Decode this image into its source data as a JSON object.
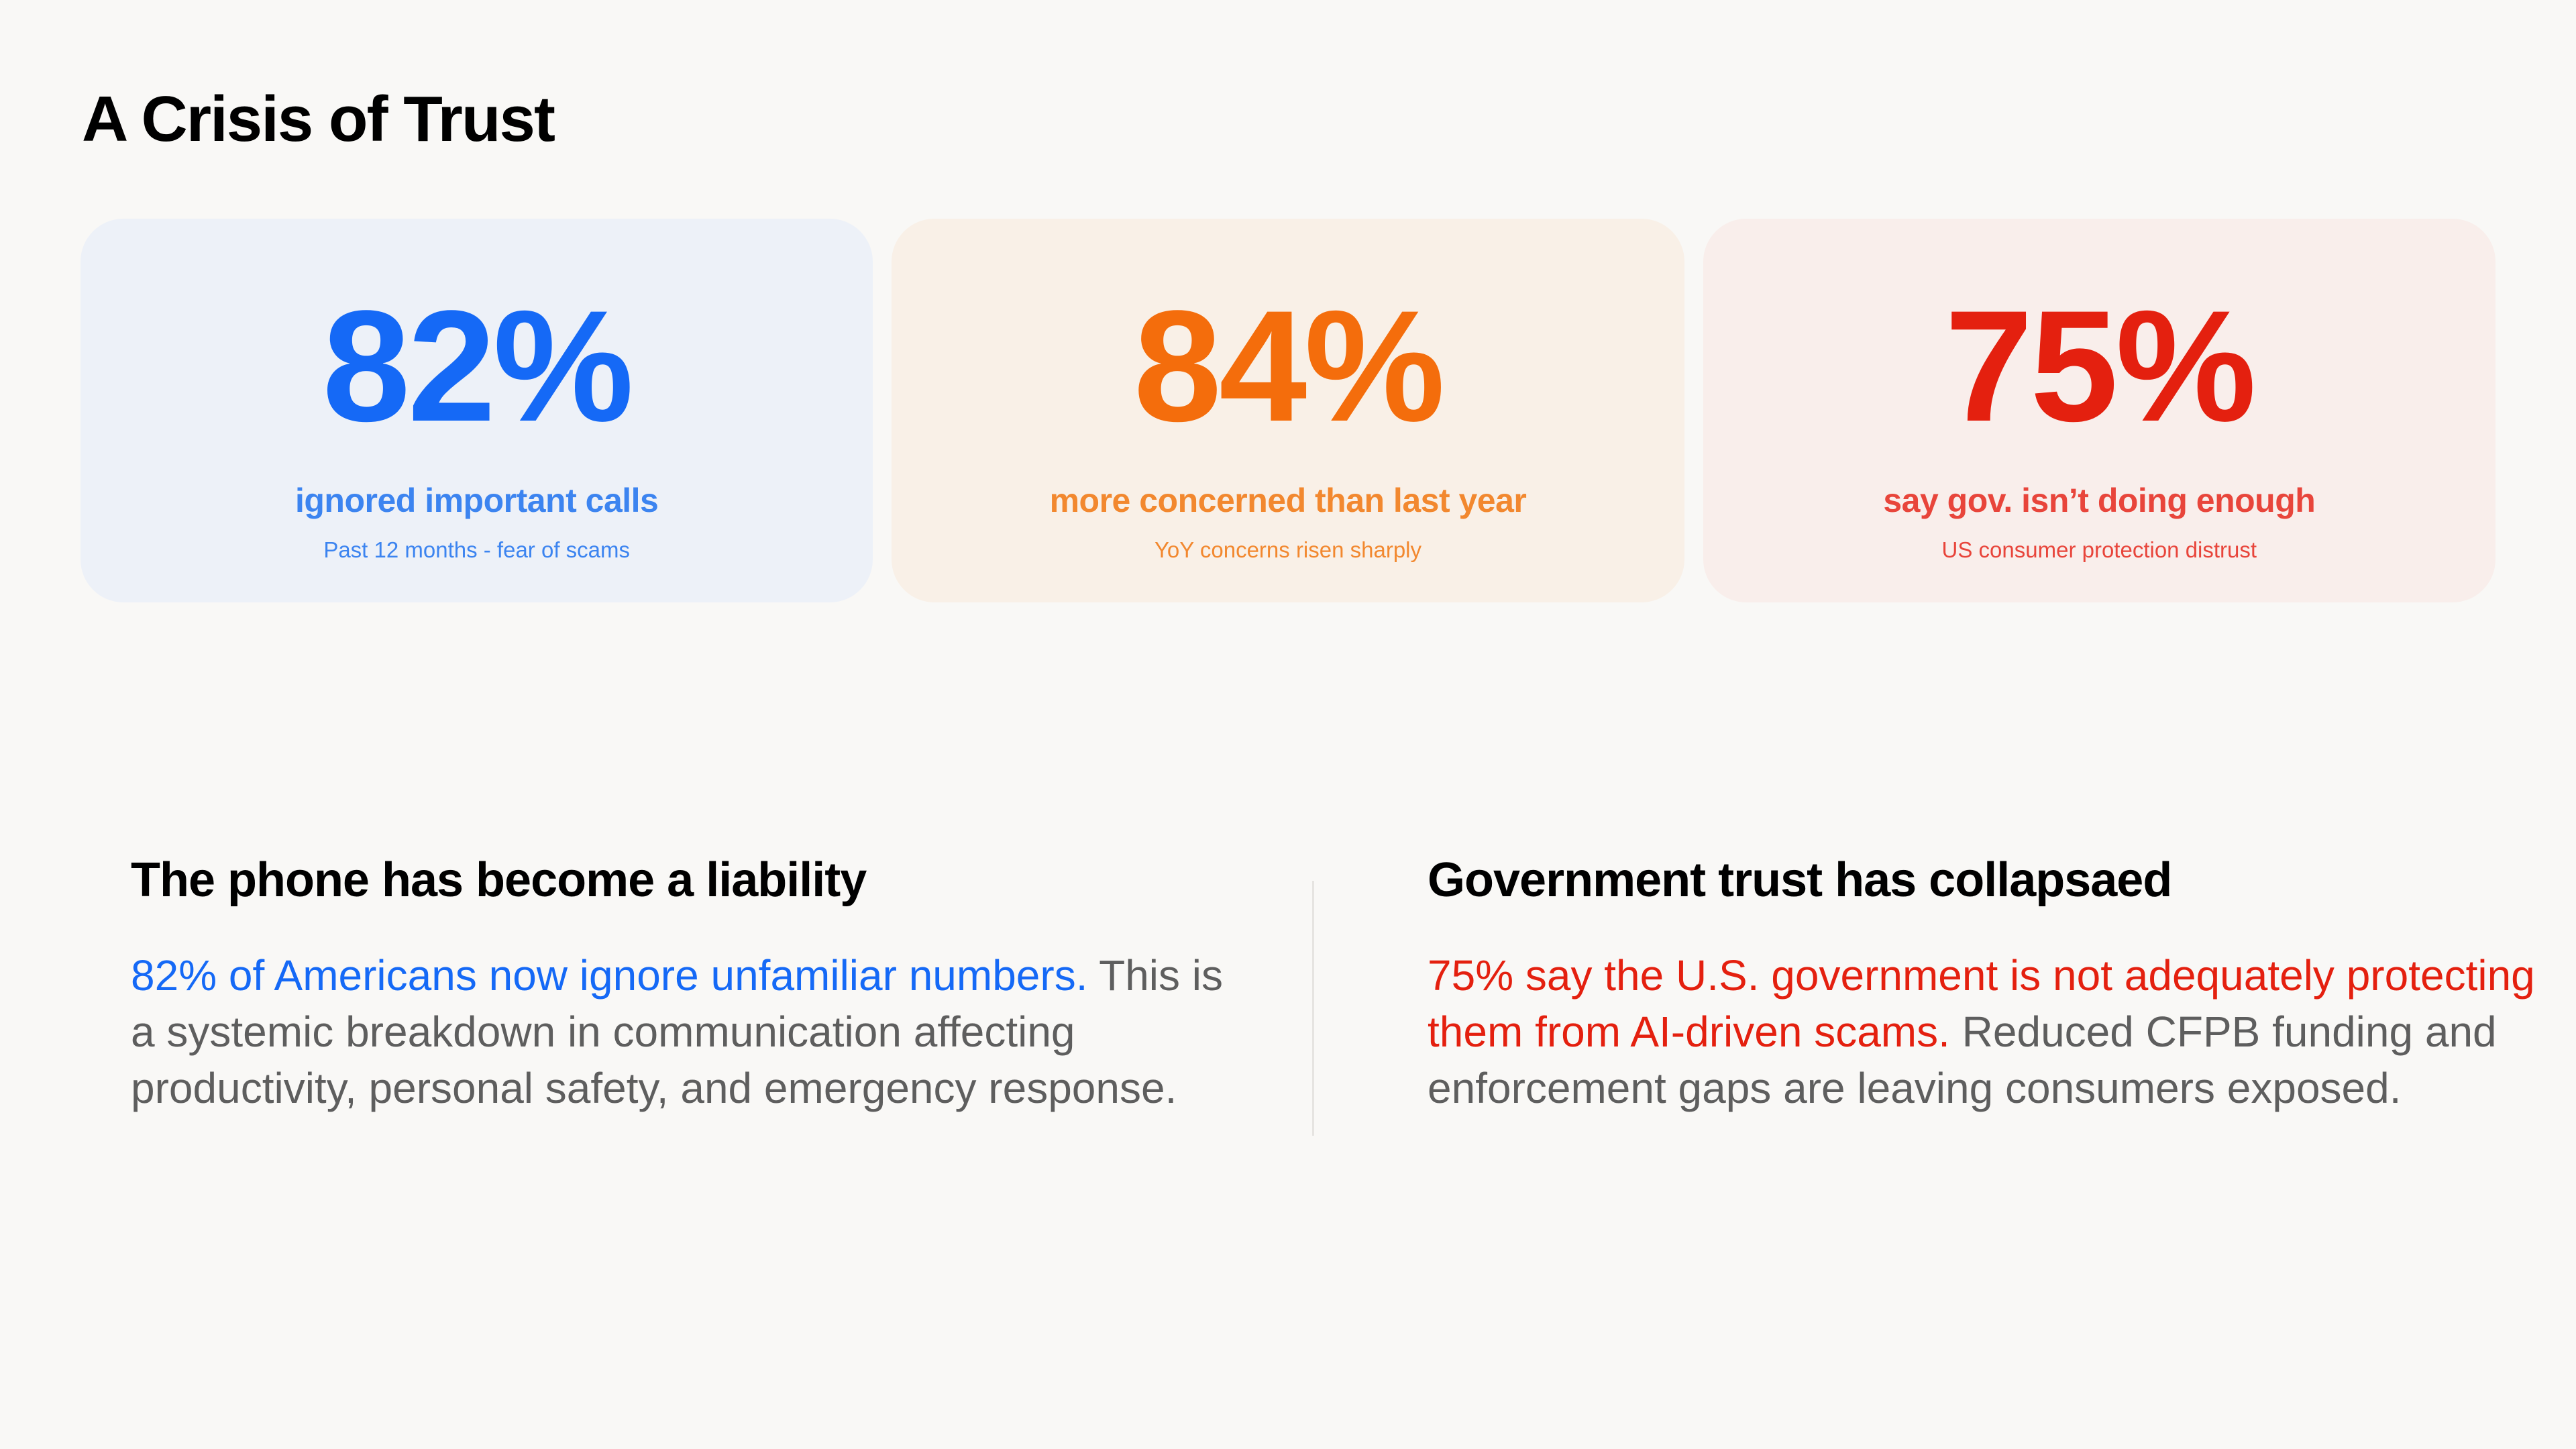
{
  "page": {
    "title": "A Crisis of Trust"
  },
  "stats": [
    {
      "value": "82%",
      "label": "ignored important calls",
      "sub": "Past 12 months - fear of scams",
      "accent": "#1569f6",
      "background": "#edf1f8"
    },
    {
      "value": "84%",
      "label": "more concerned than last year",
      "sub": "YoY concerns risen sharply",
      "accent": "#f46d0c",
      "background": "#f9f0e7"
    },
    {
      "value": "75%",
      "label": "say gov. isn’t doing enough",
      "sub": "US consumer protection distrust",
      "accent": "#e4200f",
      "background": "#f9eeeb"
    }
  ],
  "sections": [
    {
      "heading": "The phone has become a liability",
      "highlight": "82% of Americans now ignore unfamiliar numbers.",
      "body": " This is a systemic breakdown in communication affecting productivity, personal safety, and emergency response.",
      "highlight_color": "#1569f6"
    },
    {
      "heading": "Government trust has collapsaed",
      "highlight": "75% say the U.S. government is not adequately protecting them from AI-driven scams.",
      "body": " Reduced CFPB funding and enforcement gaps are leaving consumers exposed.",
      "highlight_color": "#e4200f"
    }
  ],
  "colors": {
    "background": "#f9f8f6",
    "body_text": "#5e5e5e",
    "heading_text": "#000000",
    "divider": "#e6e4e1"
  }
}
